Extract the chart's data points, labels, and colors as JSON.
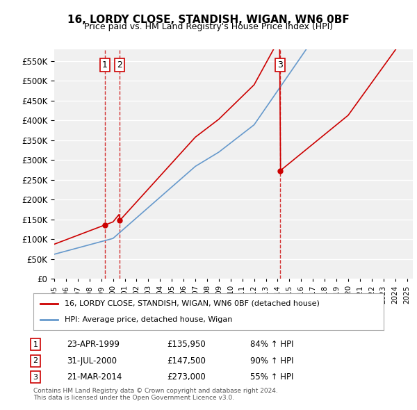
{
  "title": "16, LORDY CLOSE, STANDISH, WIGAN, WN6 0BF",
  "subtitle": "Price paid vs. HM Land Registry's House Price Index (HPI)",
  "ylabel_vals": [
    0,
    50000,
    100000,
    150000,
    200000,
    250000,
    300000,
    350000,
    400000,
    450000,
    500000,
    550000
  ],
  "ylim": [
    0,
    580000
  ],
  "xlim_start": 1995.0,
  "xlim_end": 2025.5,
  "sale_color": "#cc0000",
  "hpi_color": "#6699cc",
  "sale_label": "16, LORDY CLOSE, STANDISH, WIGAN, WN6 0BF (detached house)",
  "hpi_label": "HPI: Average price, detached house, Wigan",
  "transactions": [
    {
      "num": 1,
      "date_x": 1999.31,
      "price": 135950,
      "label": "1"
    },
    {
      "num": 2,
      "date_x": 2000.58,
      "price": 147500,
      "label": "2"
    },
    {
      "num": 3,
      "date_x": 2014.22,
      "price": 273000,
      "label": "3"
    }
  ],
  "vline_dates": [
    1999.31,
    2000.58,
    2014.22
  ],
  "table_rows": [
    {
      "num": "1",
      "date": "23-APR-1999",
      "price": "£135,950",
      "change": "84% ↑ HPI"
    },
    {
      "num": "2",
      "date": "31-JUL-2000",
      "price": "£147,500",
      "change": "90% ↑ HPI"
    },
    {
      "num": "3",
      "date": "21-MAR-2014",
      "price": "£273,000",
      "change": "55% ↑ HPI"
    }
  ],
  "footnote": "Contains HM Land Registry data © Crown copyright and database right 2024.\nThis data is licensed under the Open Government Licence v3.0.",
  "background_color": "#ffffff",
  "plot_bg_color": "#f0f0f0",
  "grid_color": "#ffffff"
}
